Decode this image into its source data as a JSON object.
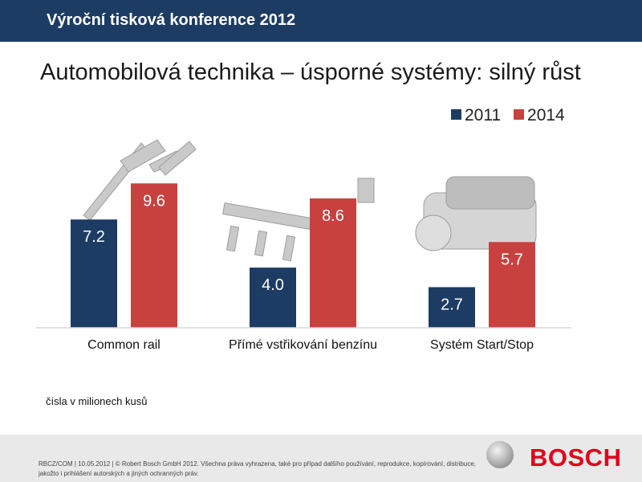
{
  "header": {
    "title": "Výroční tisková konference 2012"
  },
  "slide": {
    "title": "Automobilová technika – úsporné systémy: silný růst"
  },
  "colors": {
    "header_bg": "#1d3c64",
    "series_2011": "#1d3c64",
    "series_2014": "#c8413f",
    "logo_red": "#e2001a"
  },
  "chart_data": {
    "type": "bar",
    "categories": [
      "Common rail",
      "Přímé vstřikování benzínu",
      "Systém Start/Stop"
    ],
    "series": [
      {
        "name": "2011",
        "values": [
          7.2,
          4.0,
          2.7
        ],
        "labels": [
          "7.2",
          "4.0",
          "2.7"
        ]
      },
      {
        "name": "2014",
        "values": [
          9.6,
          8.6,
          5.7
        ],
        "labels": [
          "9.6",
          "8.6",
          "5.7"
        ]
      }
    ],
    "ylim": [
      0,
      12.5
    ],
    "grid": false,
    "legend": "top-right"
  },
  "note": "čísla v milionech kusů",
  "footer": {
    "text": "RBCZ/COM | 10.05.2012 | © Robert Bosch GmbH 2012. Všechna práva vyhrazena, také pro případ dalšího používání, reprodukce, kopírování, distribuce, jakožto i prihlášení autorských a jiných ochranných práv.",
    "logo_text": "BOSCH"
  }
}
